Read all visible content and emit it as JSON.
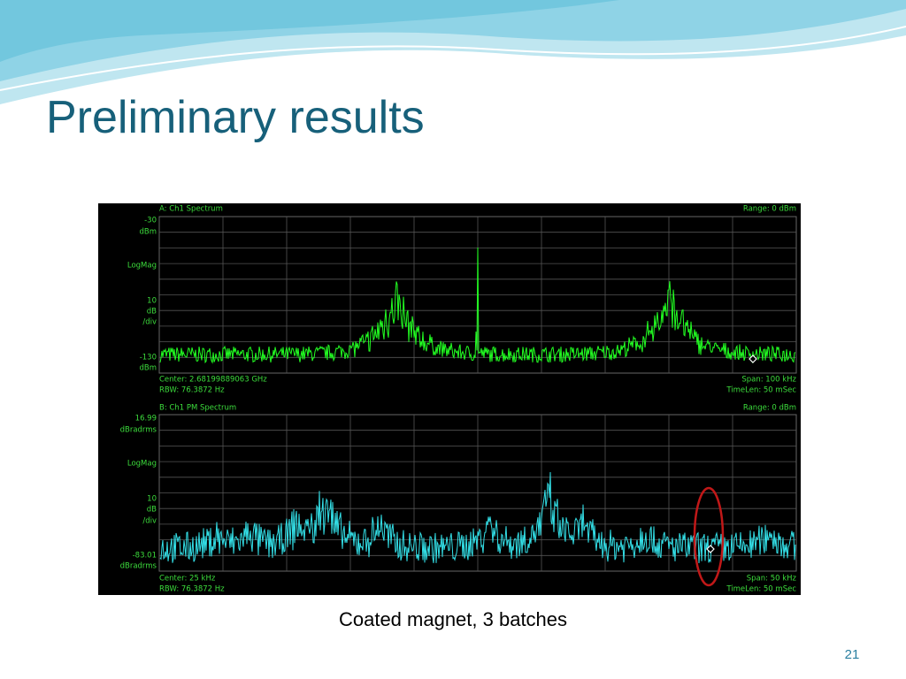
{
  "title": "Preliminary results",
  "caption": "Coated magnet, 3 batches",
  "page_number": "21",
  "screenshot": {
    "panels": [
      {
        "header_left": "A: Ch1 Spectrum",
        "header_right": "Range: 0 dBm",
        "y_labels": [
          "-30",
          "dBm",
          "LogMag",
          "10",
          "dB",
          "/div",
          "-130",
          "dBm"
        ],
        "center": "Center: 2.68199889063 GHz",
        "span": "Span: 100 kHz",
        "rbw": "RBW: 76.3872  Hz",
        "timelen": "TimeLen: 50 mSec"
      },
      {
        "header_left": "B: Ch1 PM Spectrum",
        "header_right": "Range: 0 dBm",
        "y_labels": [
          "16.99",
          "dBradrms",
          "LogMag",
          "10",
          "dB",
          "/div",
          "-83.01",
          "dBradrms"
        ],
        "center": "Center: 25 kHz",
        "span": "Span: 50 kHz",
        "rbw": "RBW: 76.3872  Hz",
        "timelen": "TimeLen: 50 mSec"
      }
    ]
  }
}
